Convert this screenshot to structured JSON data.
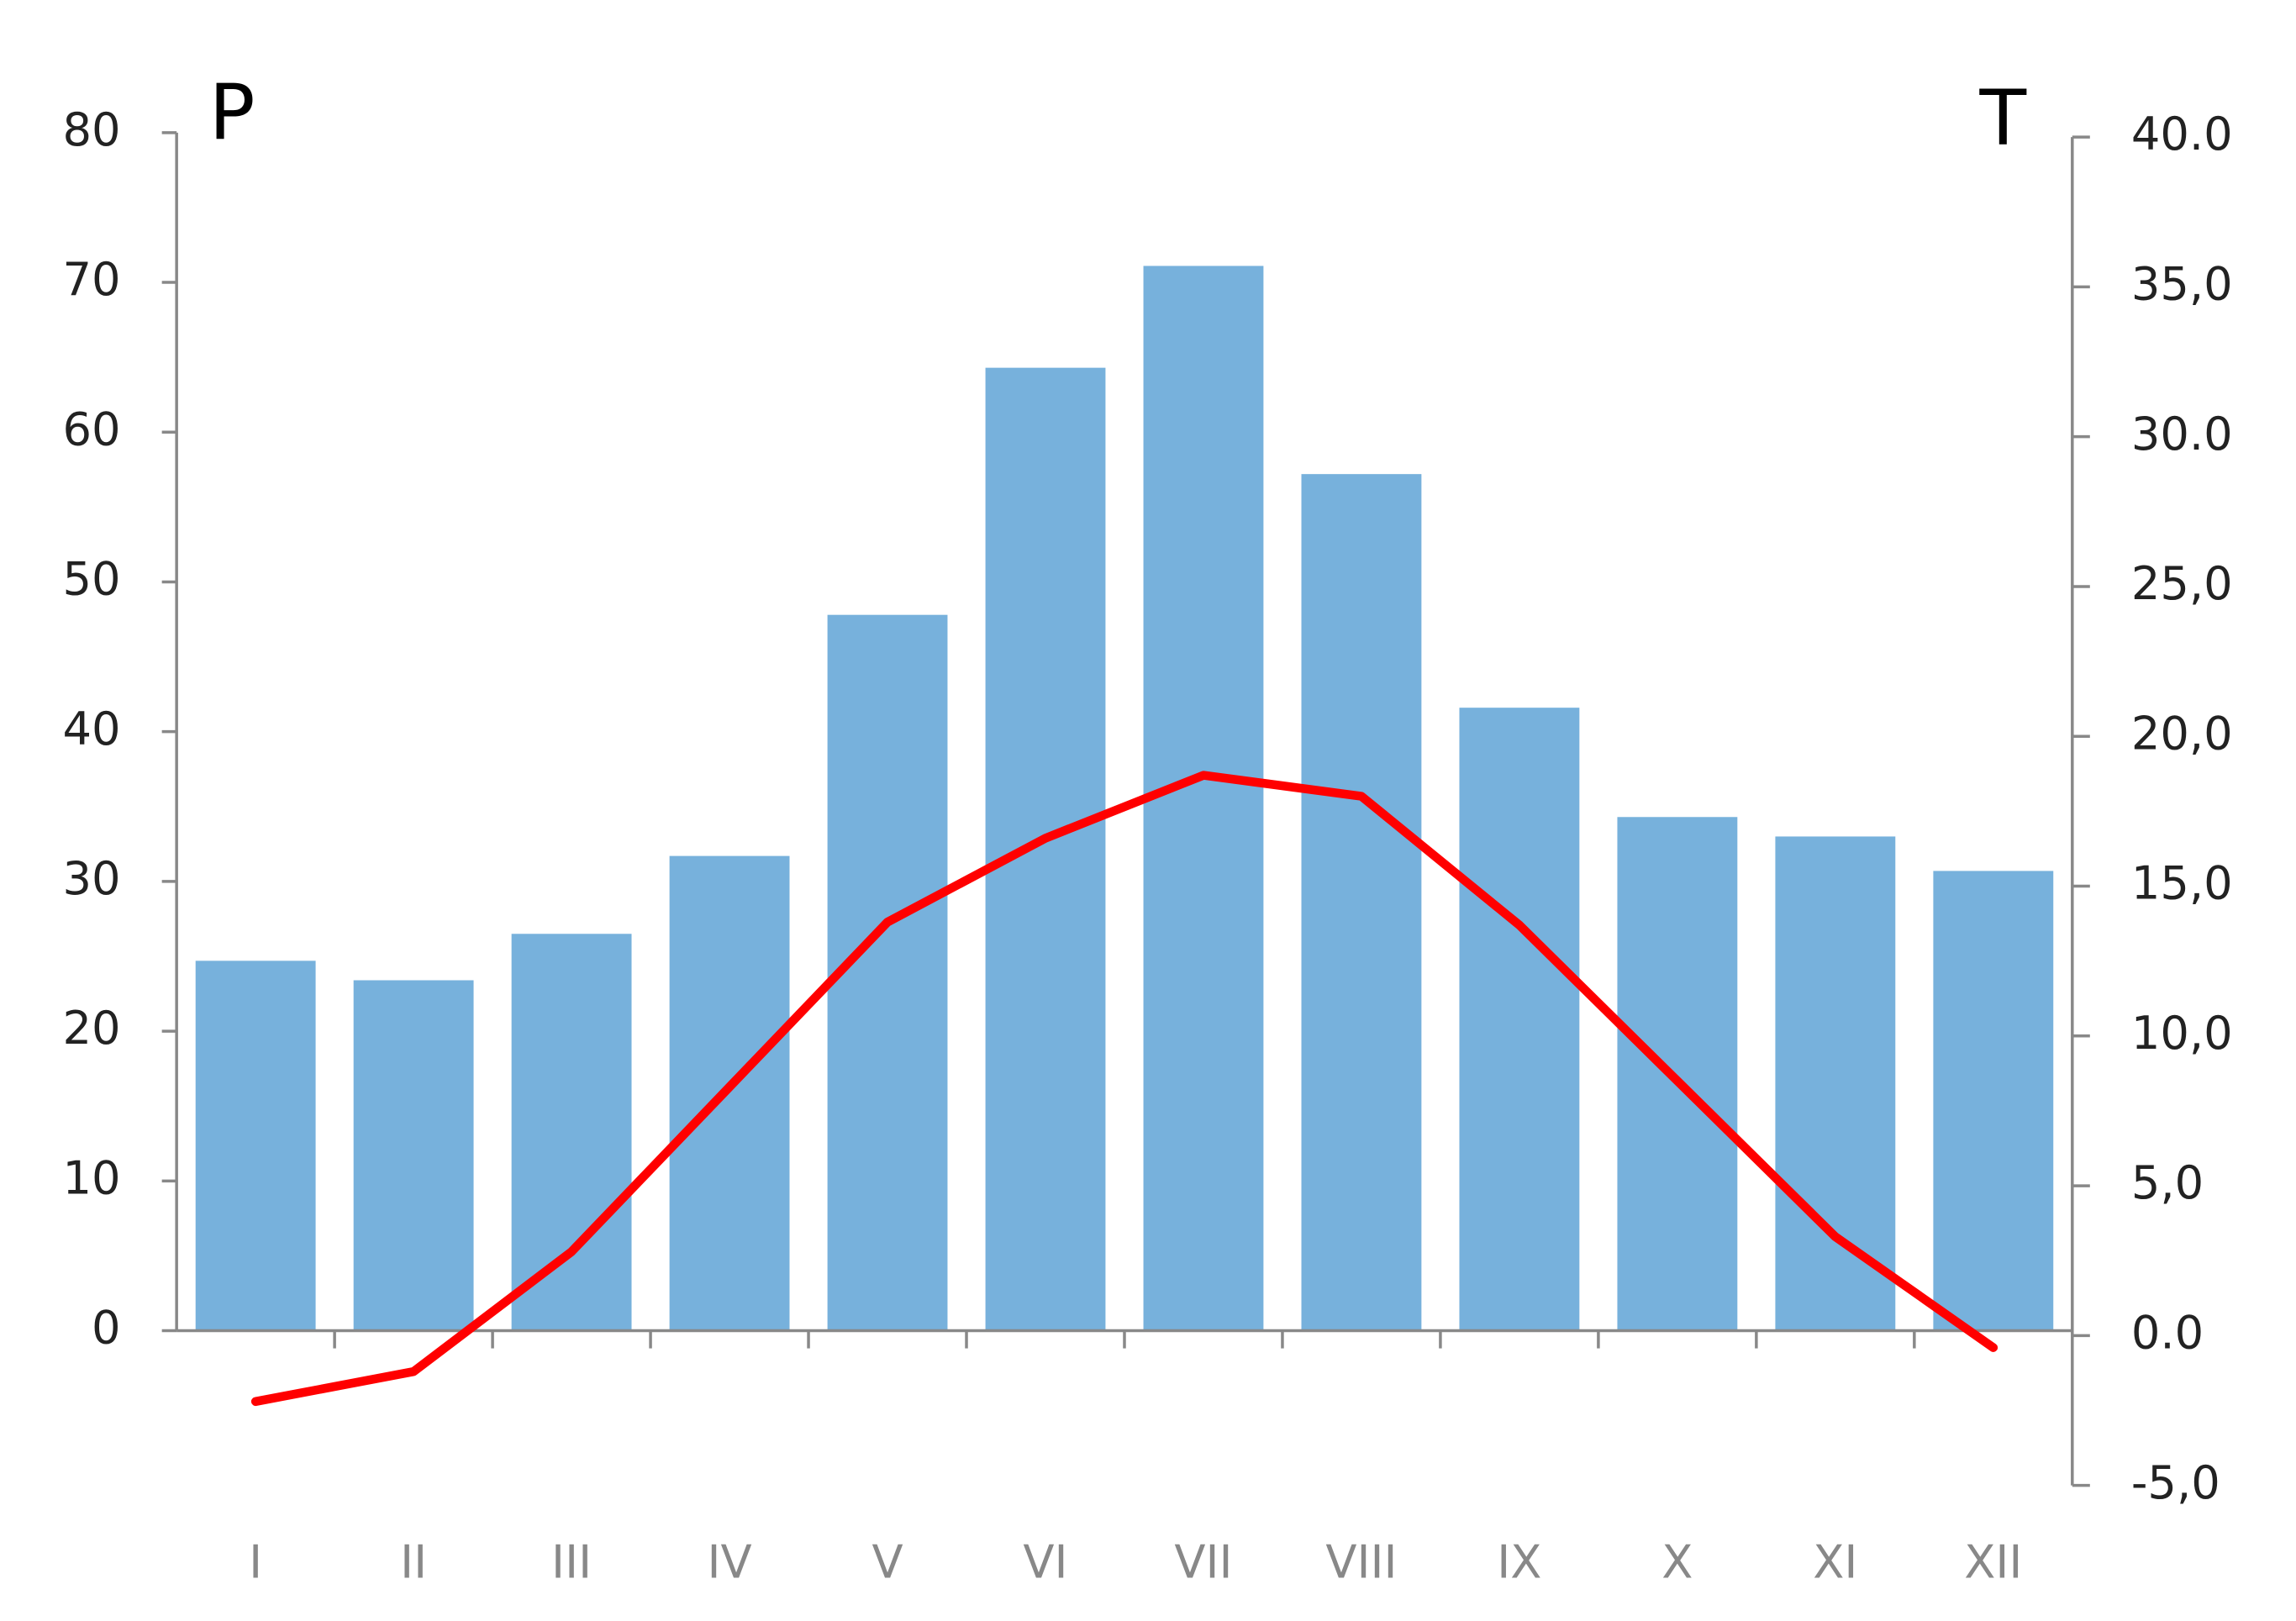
{
  "chart_data": {
    "type": "bar",
    "y_label": "P",
    "y2_label": "T",
    "categories": [
      "I",
      "II",
      "III",
      "IV",
      "V",
      "VI",
      "VII",
      "VIII",
      "IX",
      "X",
      "XI",
      "XII"
    ],
    "series": [
      {
        "type": "bar",
        "color": "#77b1dc",
        "values": [
          24.7,
          23.4,
          26.5,
          31.7,
          47.8,
          64.3,
          71.1,
          57.2,
          41.6,
          34.3,
          33.0,
          30.7
        ]
      },
      {
        "type": "line",
        "axis": "y2",
        "color": "#ff0000",
        "values": [
          -2.2,
          -1.2,
          2.8,
          8.3,
          13.8,
          16.6,
          18.7,
          18.0,
          13.7,
          8.5,
          3.3,
          -0.4
        ]
      }
    ],
    "ylim": [
      0,
      80
    ],
    "yticks": [
      0,
      10,
      20,
      30,
      40,
      50,
      60,
      70,
      80
    ],
    "y2lim": [
      -5,
      40
    ],
    "y2ticks": [
      {
        "value": -5,
        "label": "-5,0"
      },
      {
        "value": 0,
        "label": "0.0"
      },
      {
        "value": 5,
        "label": "5,0"
      },
      {
        "value": 10,
        "label": "10,0"
      },
      {
        "value": 15,
        "label": "15,0"
      },
      {
        "value": 20,
        "label": "20,0"
      },
      {
        "value": 25,
        "label": "25,0"
      },
      {
        "value": 30,
        "label": "30.0"
      },
      {
        "value": 35,
        "label": "35,0"
      },
      {
        "value": 40,
        "label": "40.0"
      }
    ]
  }
}
